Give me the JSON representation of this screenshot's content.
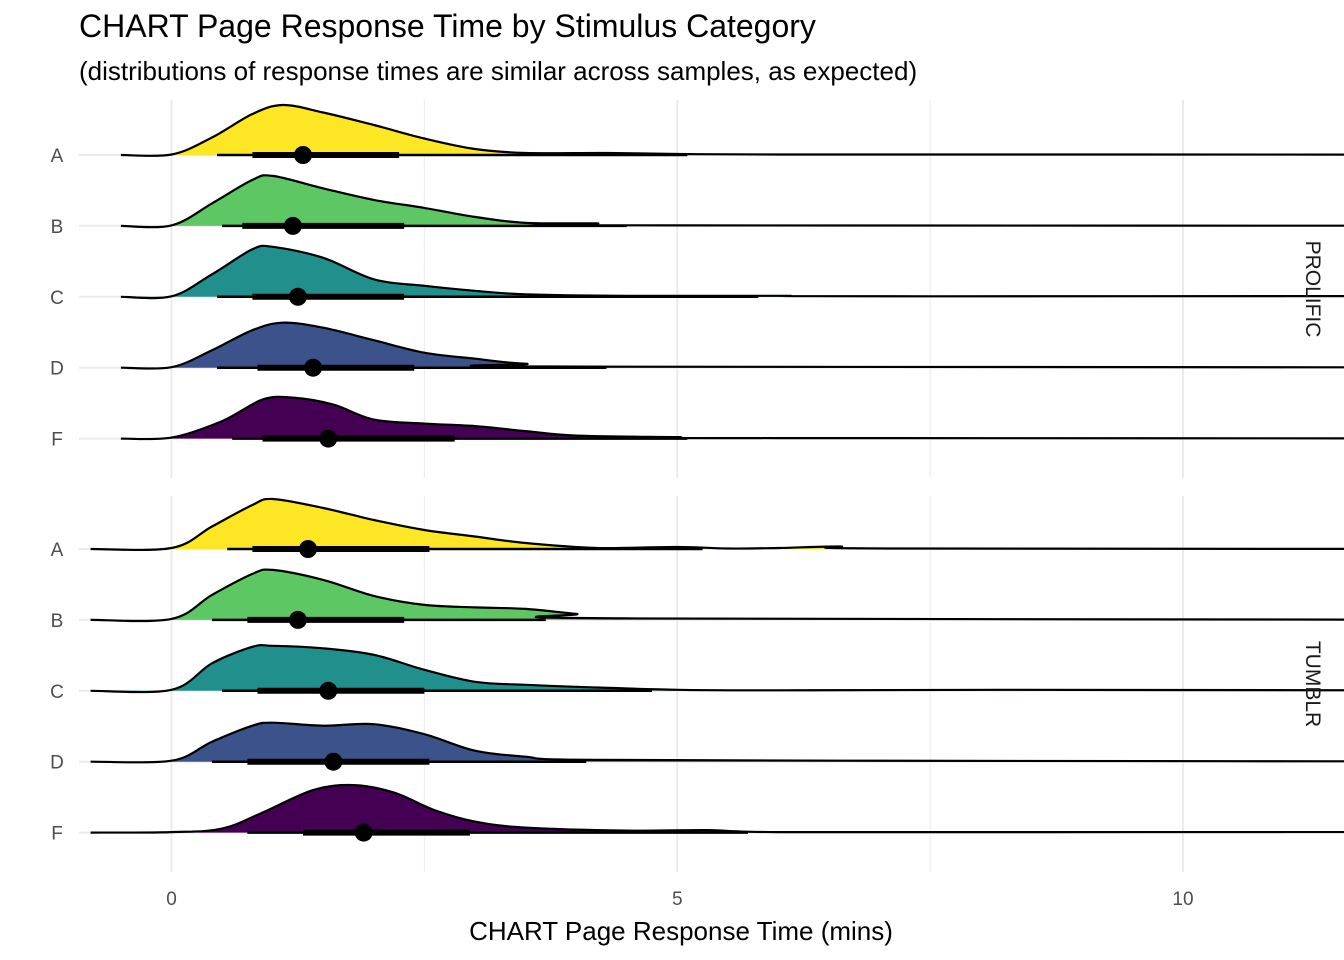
{
  "chart_data": {
    "type": "ridgeline",
    "title": "CHART Page Response Time by Stimulus Category",
    "subtitle": "(distributions of response times are similar across samples, as expected)",
    "xlabel": "CHART Page Response Time (mins)",
    "ylabel": "",
    "xlim": [
      -2,
      22
    ],
    "x_ticks": [
      0,
      5,
      10,
      15,
      20
    ],
    "categories": [
      "A",
      "B",
      "C",
      "D",
      "F"
    ],
    "colors": {
      "A": "#FDE725",
      "B": "#5DC863",
      "C": "#21908C",
      "D": "#3B528B",
      "F": "#440154"
    },
    "facets": [
      {
        "name": "PROLIFIC",
        "rows": [
          {
            "category": "A",
            "median": 1.3,
            "interval_inner": [
              0.8,
              2.25
            ],
            "interval_outer": [
              0.45,
              5.1
            ],
            "density": [
              [
                -0.5,
                0
              ],
              [
                0,
                0.01
              ],
              [
                0.4,
                0.35
              ],
              [
                0.8,
                0.82
              ],
              [
                1.1,
                1.0
              ],
              [
                1.5,
                0.85
              ],
              [
                2.0,
                0.6
              ],
              [
                2.5,
                0.33
              ],
              [
                3.0,
                0.12
              ],
              [
                3.5,
                0.04
              ],
              [
                4.3,
                0.04
              ],
              [
                5.0,
                0.02
              ],
              [
                6.0,
                0.01
              ],
              [
                9.0,
                0.01
              ],
              [
                21.0,
                0
              ]
            ]
          },
          {
            "category": "B",
            "median": 1.2,
            "interval_inner": [
              0.7,
              2.3
            ],
            "interval_outer": [
              0.5,
              4.5
            ],
            "density": [
              [
                -0.5,
                0
              ],
              [
                0,
                0.01
              ],
              [
                0.4,
                0.45
              ],
              [
                0.8,
                0.92
              ],
              [
                1.0,
                1.0
              ],
              [
                1.5,
                0.75
              ],
              [
                2.0,
                0.52
              ],
              [
                2.5,
                0.36
              ],
              [
                3.0,
                0.18
              ],
              [
                3.5,
                0.06
              ],
              [
                4.2,
                0.05
              ],
              [
                5.0,
                0.01
              ],
              [
                21.0,
                0
              ]
            ]
          },
          {
            "category": "C",
            "median": 1.25,
            "interval_inner": [
              0.8,
              2.3
            ],
            "interval_outer": [
              0.45,
              5.8
            ],
            "density": [
              [
                -0.5,
                0
              ],
              [
                0,
                0.01
              ],
              [
                0.4,
                0.45
              ],
              [
                0.8,
                0.95
              ],
              [
                1.0,
                1.0
              ],
              [
                1.5,
                0.78
              ],
              [
                2.0,
                0.35
              ],
              [
                2.5,
                0.22
              ],
              [
                3.0,
                0.12
              ],
              [
                3.5,
                0.05
              ],
              [
                4.5,
                0.02
              ],
              [
                6.0,
                0.02
              ],
              [
                7.5,
                0.01
              ],
              [
                20.0,
                0.02
              ],
              [
                21.0,
                0
              ]
            ]
          },
          {
            "category": "D",
            "median": 1.4,
            "interval_inner": [
              0.85,
              2.4
            ],
            "interval_outer": [
              0.45,
              4.3
            ],
            "density": [
              [
                -0.5,
                0
              ],
              [
                0,
                0.01
              ],
              [
                0.4,
                0.35
              ],
              [
                0.8,
                0.75
              ],
              [
                1.1,
                0.9
              ],
              [
                1.5,
                0.8
              ],
              [
                2.0,
                0.55
              ],
              [
                2.5,
                0.3
              ],
              [
                3.0,
                0.18
              ],
              [
                3.5,
                0.08
              ],
              [
                4.5,
                0.02
              ],
              [
                21.0,
                0
              ]
            ]
          },
          {
            "category": "F",
            "median": 1.55,
            "interval_inner": [
              0.9,
              2.8
            ],
            "interval_outer": [
              0.6,
              5.1
            ],
            "density": [
              [
                -0.5,
                0
              ],
              [
                0,
                0.02
              ],
              [
                0.5,
                0.35
              ],
              [
                0.9,
                0.78
              ],
              [
                1.2,
                0.82
              ],
              [
                1.6,
                0.68
              ],
              [
                2.0,
                0.38
              ],
              [
                2.5,
                0.3
              ],
              [
                3.0,
                0.25
              ],
              [
                3.5,
                0.15
              ],
              [
                4.0,
                0.06
              ],
              [
                5.0,
                0.03
              ],
              [
                6.0,
                0.01
              ],
              [
                21.0,
                0
              ]
            ]
          }
        ]
      },
      {
        "name": "TUMBLR",
        "rows": [
          {
            "category": "A",
            "median": 1.35,
            "interval_inner": [
              0.8,
              2.55
            ],
            "interval_outer": [
              0.55,
              5.25
            ],
            "density": [
              [
                -0.8,
                0
              ],
              [
                0,
                0.02
              ],
              [
                0.4,
                0.45
              ],
              [
                0.8,
                0.88
              ],
              [
                1.0,
                1.0
              ],
              [
                1.5,
                0.82
              ],
              [
                2.0,
                0.58
              ],
              [
                2.5,
                0.38
              ],
              [
                3.0,
                0.25
              ],
              [
                3.5,
                0.12
              ],
              [
                4.2,
                0.02
              ],
              [
                5.0,
                0.04
              ],
              [
                5.5,
                0.01
              ],
              [
                6.0,
                0.02
              ],
              [
                6.6,
                0.05
              ],
              [
                7.2,
                0.01
              ],
              [
                14.7,
                0
              ]
            ]
          },
          {
            "category": "B",
            "median": 1.25,
            "interval_inner": [
              0.75,
              2.3
            ],
            "interval_outer": [
              0.4,
              3.7
            ],
            "density": [
              [
                -0.8,
                0
              ],
              [
                0,
                0.02
              ],
              [
                0.4,
                0.5
              ],
              [
                0.8,
                0.92
              ],
              [
                1.0,
                1.0
              ],
              [
                1.5,
                0.8
              ],
              [
                2.0,
                0.48
              ],
              [
                2.5,
                0.3
              ],
              [
                3.0,
                0.25
              ],
              [
                3.5,
                0.22
              ],
              [
                4.0,
                0.12
              ],
              [
                4.5,
                0.03
              ],
              [
                14.7,
                0
              ]
            ]
          },
          {
            "category": "C",
            "median": 1.55,
            "interval_inner": [
              0.85,
              2.5
            ],
            "interval_outer": [
              0.5,
              4.75
            ],
            "density": [
              [
                -0.8,
                0
              ],
              [
                0,
                0.02
              ],
              [
                0.4,
                0.55
              ],
              [
                0.8,
                0.88
              ],
              [
                1.0,
                0.9
              ],
              [
                1.5,
                0.85
              ],
              [
                2.0,
                0.72
              ],
              [
                2.5,
                0.42
              ],
              [
                3.0,
                0.18
              ],
              [
                3.5,
                0.12
              ],
              [
                4.0,
                0.08
              ],
              [
                5.0,
                0.02
              ],
              [
                6.0,
                0.01
              ],
              [
                8.2,
                0.02
              ],
              [
                14.7,
                0
              ]
            ]
          },
          {
            "category": "D",
            "median": 1.6,
            "interval_inner": [
              0.75,
              2.55
            ],
            "interval_outer": [
              0.4,
              4.1
            ],
            "density": [
              [
                -0.8,
                0
              ],
              [
                0,
                0.02
              ],
              [
                0.4,
                0.4
              ],
              [
                0.8,
                0.72
              ],
              [
                1.0,
                0.78
              ],
              [
                1.5,
                0.72
              ],
              [
                2.0,
                0.75
              ],
              [
                2.5,
                0.55
              ],
              [
                3.0,
                0.22
              ],
              [
                3.5,
                0.1
              ],
              [
                4.0,
                0.04
              ],
              [
                6.7,
                0.02
              ],
              [
                14.7,
                0
              ]
            ]
          },
          {
            "category": "F",
            "median": 1.9,
            "interval_inner": [
              1.3,
              2.95
            ],
            "interval_outer": [
              0.75,
              5.7
            ],
            "density": [
              [
                -0.8,
                0
              ],
              [
                0,
                0.01
              ],
              [
                0.5,
                0.08
              ],
              [
                0.9,
                0.4
              ],
              [
                1.4,
                0.85
              ],
              [
                1.8,
                0.95
              ],
              [
                2.2,
                0.8
              ],
              [
                2.6,
                0.45
              ],
              [
                3.0,
                0.22
              ],
              [
                3.5,
                0.1
              ],
              [
                4.5,
                0.04
              ],
              [
                5.3,
                0.05
              ],
              [
                6.0,
                0.01
              ],
              [
                8.7,
                0.01
              ],
              [
                13.7,
                0.01
              ],
              [
                14.7,
                0
              ]
            ]
          }
        ]
      }
    ]
  }
}
